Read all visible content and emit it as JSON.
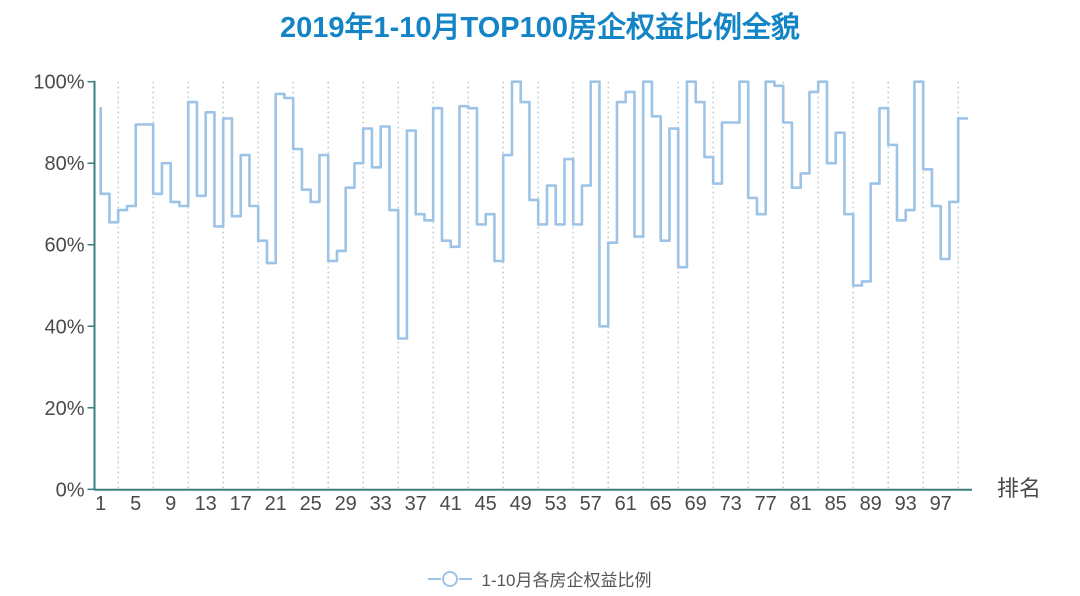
{
  "title": "2019年1-10月TOP100房企权益比例全貌",
  "x_axis_unit": "排名",
  "legend": {
    "label": "1-10月各房企权益比例"
  },
  "colors": {
    "title": "#1385c6",
    "line": "#9dc3e6",
    "axis": "#3a7e7e",
    "gridline": "#a6c2be",
    "tick_label": "#4a4a4a",
    "legend_text": "#555555"
  },
  "chart_data": {
    "type": "line",
    "step": "start",
    "title": "2019年1-10月TOP100房企权益比例全貌",
    "xlabel": "排名",
    "ylabel": "",
    "series_name": "1-10月各房企权益比例",
    "x_start": 1,
    "x_end": 100,
    "ylim": [
      0,
      100
    ],
    "y_tick_labels": [
      "0%",
      "20%",
      "40%",
      "60%",
      "80%",
      "100%"
    ],
    "x_tick_labels": [
      "1",
      "5",
      "9",
      "13",
      "17",
      "21",
      "25",
      "29",
      "33",
      "37",
      "41",
      "45",
      "49",
      "53",
      "57",
      "61",
      "65",
      "69",
      "73",
      "77",
      "81",
      "85",
      "89",
      "93",
      "97"
    ],
    "grid": "vertical-dotted-every-4-ranks",
    "legend_position": "bottom-center",
    "values": [
      93.5,
      72.5,
      65.5,
      68.5,
      69.5,
      89.5,
      89.5,
      72.5,
      80.0,
      70.5,
      69.5,
      95.0,
      72.0,
      92.5,
      64.5,
      91.0,
      67.0,
      82.0,
      69.5,
      61.0,
      55.5,
      97.0,
      96.0,
      83.5,
      73.5,
      70.5,
      82.0,
      56.0,
      58.5,
      74.0,
      80.0,
      88.5,
      79.0,
      89.0,
      68.5,
      37.0,
      88.0,
      67.5,
      66.0,
      93.5,
      61.0,
      59.5,
      94.0,
      93.5,
      65.0,
      67.5,
      56.0,
      82.0,
      100.0,
      95.0,
      71.0,
      65.0,
      74.5,
      65.0,
      81.0,
      65.0,
      74.5,
      100.0,
      40.0,
      60.5,
      95.0,
      97.5,
      62.0,
      100.0,
      91.5,
      61.0,
      88.5,
      54.5,
      100.0,
      95.0,
      81.5,
      75.0,
      90.0,
      90.0,
      100.0,
      71.5,
      67.5,
      100.0,
      99.0,
      90.0,
      74.0,
      77.5,
      97.5,
      100.0,
      80.0,
      87.5,
      67.5,
      50.0,
      51.0,
      75.0,
      93.5,
      84.5,
      66.0,
      68.5,
      100.0,
      78.5,
      69.5,
      56.5,
      70.5,
      91.0
    ]
  }
}
